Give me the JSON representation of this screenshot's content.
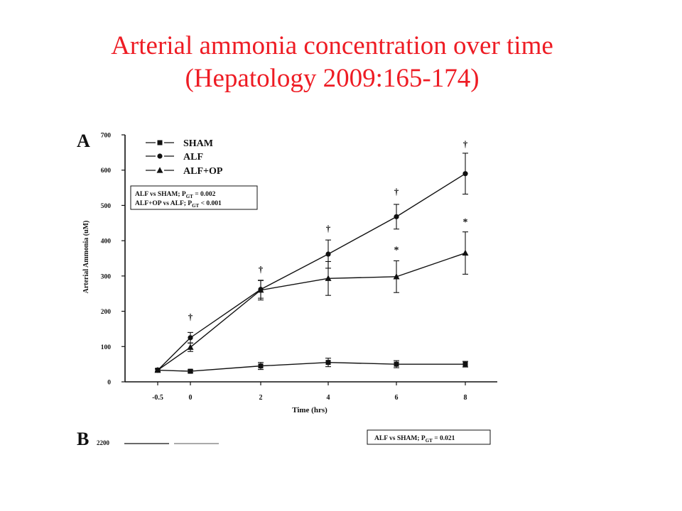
{
  "slide": {
    "title_line1": "Arterial ammonia concentration over time",
    "title_line2": "(Hepatology 2009:165-174)"
  },
  "colors": {
    "title": "#ee1c24",
    "ink": "#111111"
  },
  "chart_data": [
    {
      "panel": "A",
      "type": "line",
      "xlabel": "Time (hrs)",
      "ylabel": "Arterial Ammonia (uM)",
      "x_categories": [
        "-0.5",
        "0",
        "2",
        "4",
        "6",
        "8"
      ],
      "ylim": [
        0,
        700
      ],
      "yticks": [
        0,
        100,
        200,
        300,
        400,
        500,
        600,
        700
      ],
      "grid": false,
      "legend_position": "top-left",
      "series": [
        {
          "name": "SHAM",
          "marker": "square",
          "values": [
            33,
            30,
            45,
            55,
            50,
            50
          ],
          "errors": [
            4,
            4,
            10,
            12,
            10,
            8
          ]
        },
        {
          "name": "ALF",
          "marker": "circle",
          "values": [
            33,
            125,
            262,
            362,
            468,
            590
          ],
          "errors": [
            4,
            15,
            25,
            40,
            35,
            58
          ]
        },
        {
          "name": "ALF+OP",
          "marker": "triangle",
          "values": [
            33,
            98,
            260,
            293,
            298,
            365
          ],
          "errors": [
            4,
            12,
            28,
            48,
            45,
            60
          ]
        }
      ],
      "significance": [
        {
          "x": "0",
          "symbol": "†",
          "value": 175
        },
        {
          "x": "2",
          "symbol": "†",
          "value": 310
        },
        {
          "x": "4",
          "symbol": "†",
          "value": 425
        },
        {
          "x": "6",
          "symbol": "†",
          "value": 530
        },
        {
          "x": "6",
          "symbol": "*",
          "value": 365
        },
        {
          "x": "8",
          "symbol": "†",
          "value": 665
        },
        {
          "x": "8",
          "symbol": "*",
          "value": 445
        }
      ],
      "stats_box": {
        "line1": {
          "main": "ALF vs SHAM; P",
          "sub": "GT",
          "tail": " = 0.002"
        },
        "line2": {
          "main": "ALF+OP vs ALF; P",
          "sub": "GT",
          "tail": " < 0.001"
        }
      }
    },
    {
      "panel": "B",
      "type": "line",
      "ytick_top": "2200",
      "stats_box": {
        "line1": {
          "main": "ALF vs SHAM; P",
          "sub": "GT",
          "tail": " = 0.021"
        }
      }
    }
  ]
}
